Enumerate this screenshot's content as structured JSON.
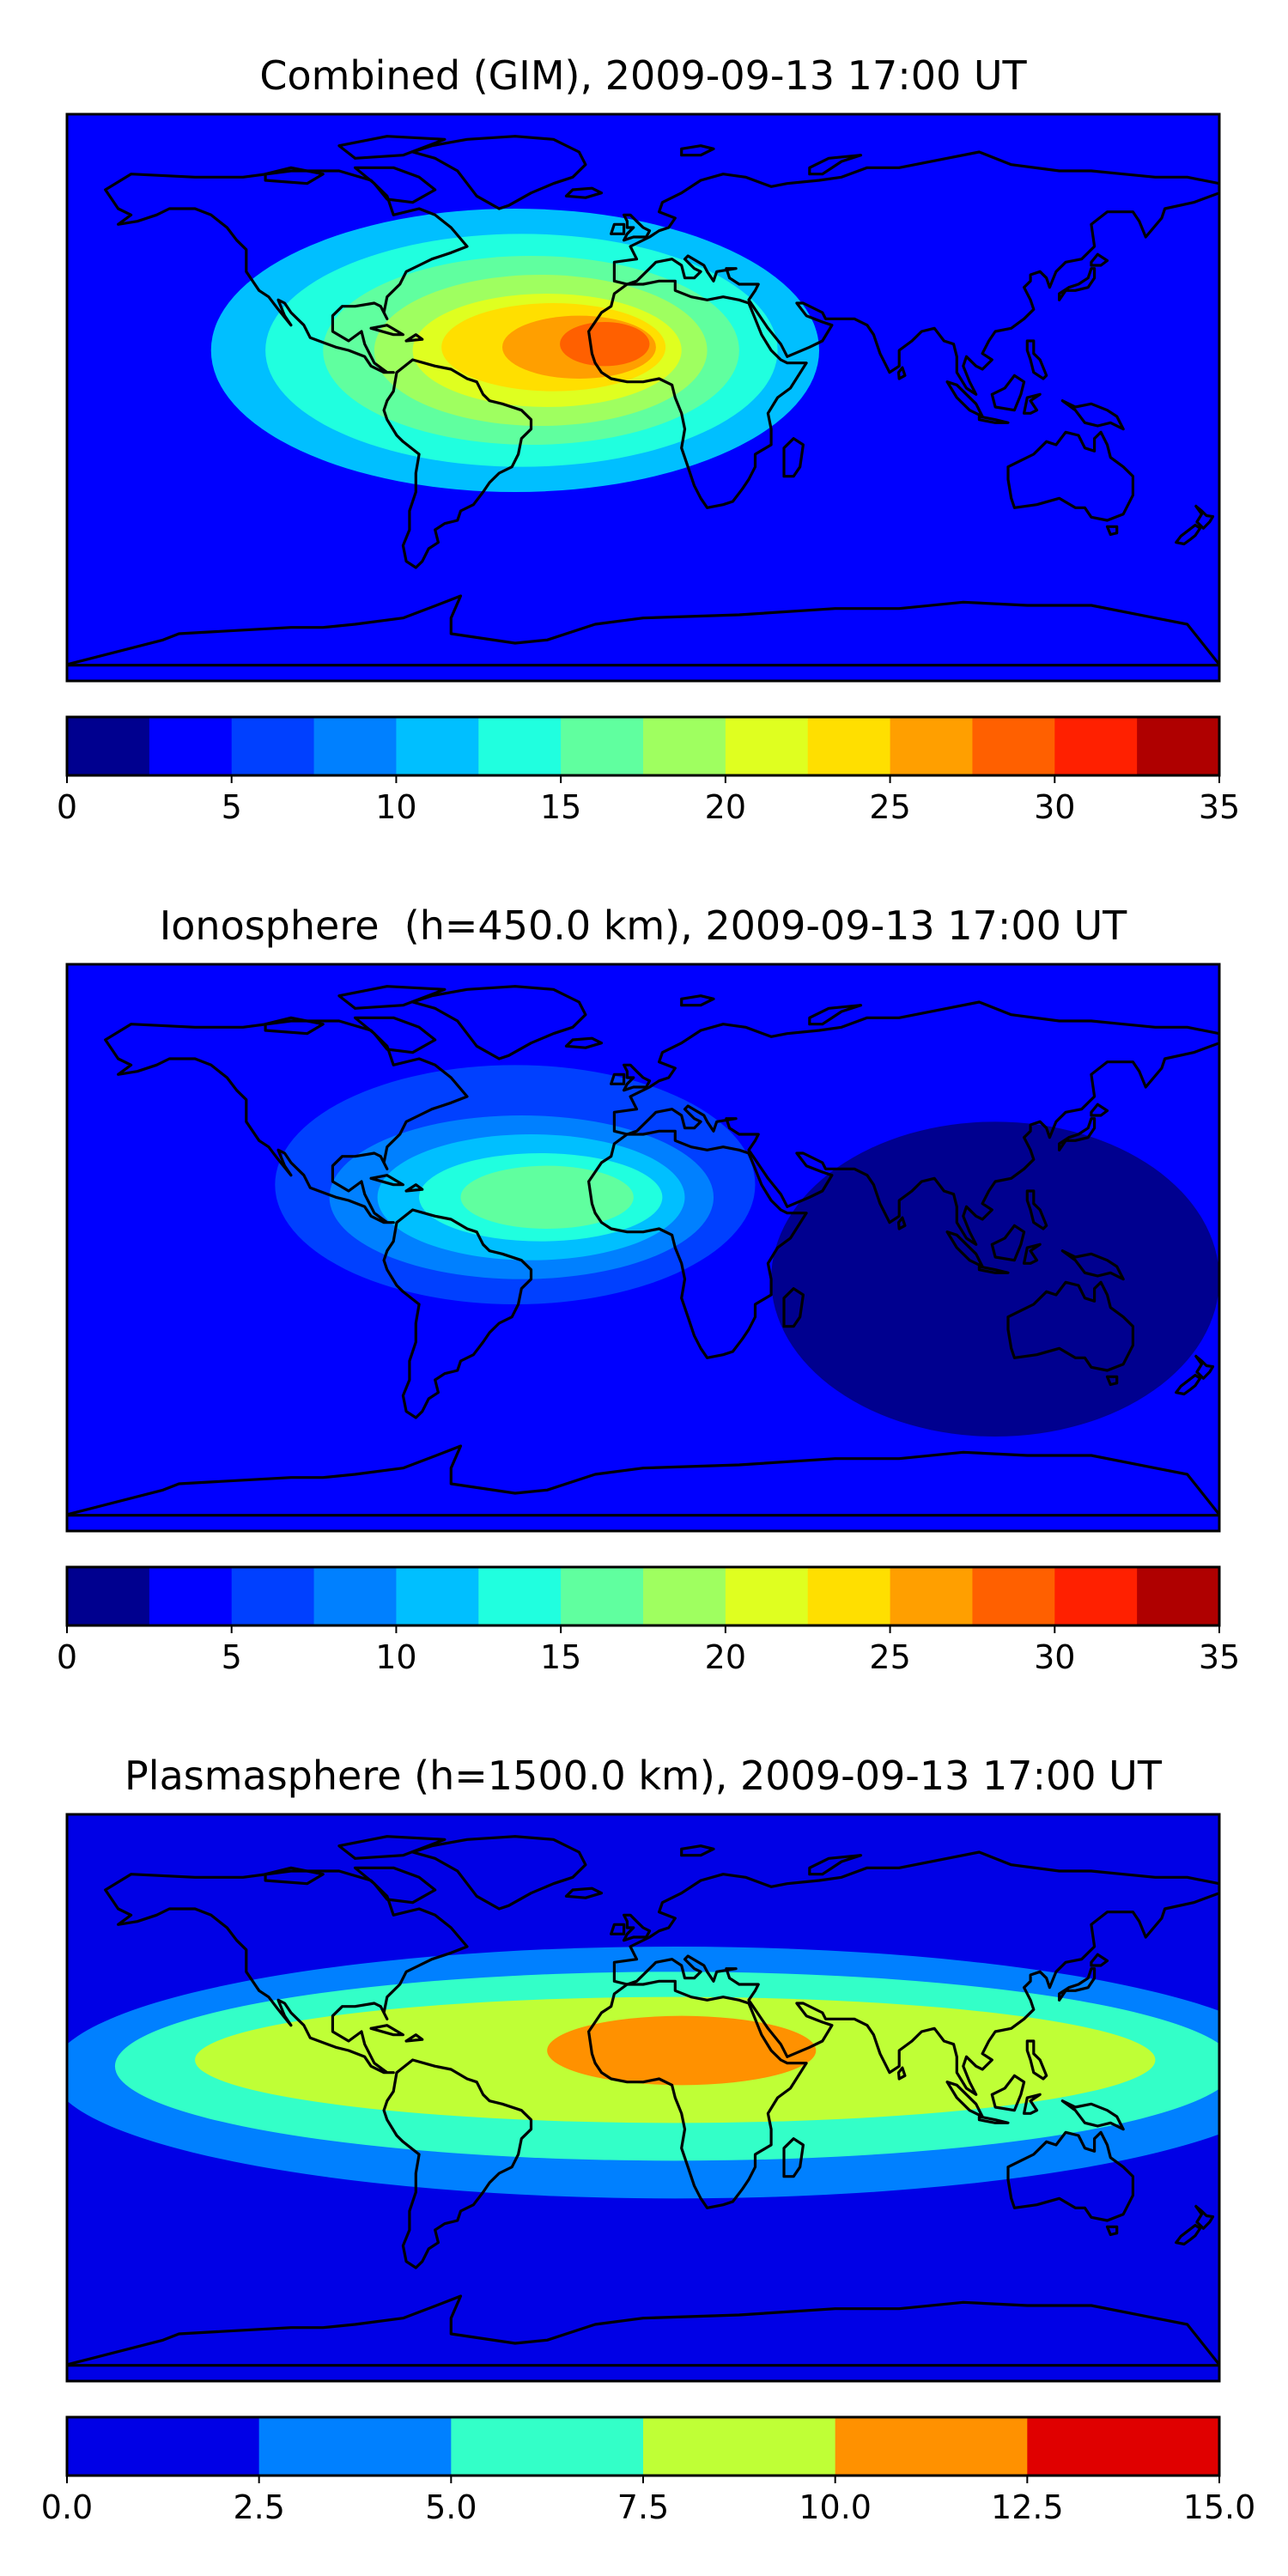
{
  "chart_data": [
    {
      "type": "heatmap",
      "title": "Combined (GIM), 2009-09-13 17:00 UT",
      "colorbar": {
        "levels": [
          0,
          2.5,
          5,
          7.5,
          10,
          12.5,
          15,
          17.5,
          20,
          22.5,
          25,
          27.5,
          30,
          32.5,
          35
        ],
        "tick_values": [
          0,
          5,
          10,
          15,
          20,
          25,
          30,
          35
        ],
        "tick_labels": [
          "0",
          "5",
          "10",
          "15",
          "20",
          "25",
          "30",
          "35"
        ],
        "colors": [
          "#00008f",
          "#0000ff",
          "#0040ff",
          "#0080ff",
          "#00bfff",
          "#20ffdf",
          "#60ff9f",
          "#9fff60",
          "#dfff20",
          "#ffdf00",
          "#ff9f00",
          "#ff6000",
          "#ff2000",
          "#af0000"
        ]
      },
      "background_level": 1,
      "field": [
        {
          "lon": -40,
          "lat": 15,
          "rx": 95,
          "ry": 45,
          "level": 4
        },
        {
          "lon": -38,
          "lat": 15,
          "rx": 80,
          "ry": 37,
          "level": 5
        },
        {
          "lon": -35,
          "lat": 15,
          "rx": 65,
          "ry": 30,
          "level": 6
        },
        {
          "lon": -32,
          "lat": 15,
          "rx": 52,
          "ry": 24,
          "level": 7
        },
        {
          "lon": -30,
          "lat": 15,
          "rx": 42,
          "ry": 18,
          "level": 8
        },
        {
          "lon": -28,
          "lat": 16,
          "rx": 35,
          "ry": 14,
          "level": 9
        },
        {
          "lon": -20,
          "lat": 16,
          "rx": 24,
          "ry": 10,
          "level": 10
        },
        {
          "lon": -12,
          "lat": 17,
          "rx": 14,
          "ry": 7,
          "level": 11
        }
      ]
    },
    {
      "type": "heatmap",
      "title": "Ionosphere  (h=450.0 km), 2009-09-13 17:00 UT",
      "colorbar": {
        "levels": [
          0,
          2.5,
          5,
          7.5,
          10,
          12.5,
          15,
          17.5,
          20,
          22.5,
          25,
          27.5,
          30,
          32.5,
          35
        ],
        "tick_values": [
          0,
          5,
          10,
          15,
          20,
          25,
          30,
          35
        ],
        "tick_labels": [
          "0",
          "5",
          "10",
          "15",
          "20",
          "25",
          "30",
          "35"
        ],
        "colors": [
          "#00008f",
          "#0000ff",
          "#0040ff",
          "#0080ff",
          "#00bfff",
          "#20ffdf",
          "#60ff9f",
          "#9fff60",
          "#dfff20",
          "#ffdf00",
          "#ff9f00",
          "#ff6000",
          "#ff2000",
          "#af0000"
        ]
      },
      "background_level": 1,
      "field": [
        {
          "lon": 110,
          "lat": -10,
          "rx": 70,
          "ry": 50,
          "level": 0
        },
        {
          "lon": -40,
          "lat": 20,
          "rx": 75,
          "ry": 38,
          "level": 2
        },
        {
          "lon": -38,
          "lat": 16,
          "rx": 60,
          "ry": 26,
          "level": 3
        },
        {
          "lon": -35,
          "lat": 16,
          "rx": 48,
          "ry": 20,
          "level": 4
        },
        {
          "lon": -32,
          "lat": 16,
          "rx": 38,
          "ry": 14,
          "level": 5
        },
        {
          "lon": -30,
          "lat": 16,
          "rx": 27,
          "ry": 10,
          "level": 6
        }
      ]
    },
    {
      "type": "heatmap",
      "title": "Plasmasphere (h=1500.0 km), 2009-09-13 17:00 UT",
      "colorbar": {
        "levels": [
          0,
          2.5,
          5,
          7.5,
          10,
          12.5,
          15
        ],
        "tick_values": [
          0,
          2.5,
          5,
          7.5,
          10,
          12.5,
          15
        ],
        "tick_labels": [
          "0.0",
          "2.5",
          "5.0",
          "7.5",
          "10.0",
          "12.5",
          "15.0"
        ],
        "colors": [
          "#0000e6",
          "#0080ff",
          "#33ffc8",
          "#bfff36",
          "#ff9100",
          "#e00000"
        ]
      },
      "background_level": 0,
      "field": [
        {
          "lon": 10,
          "lat": 8,
          "rx": 195,
          "ry": 40,
          "level": 1
        },
        {
          "lon": 10,
          "lat": 10,
          "rx": 175,
          "ry": 30,
          "level": 2
        },
        {
          "lon": 10,
          "lat": 12,
          "rx": 150,
          "ry": 20,
          "level": 3
        },
        {
          "lon": 12,
          "lat": 15,
          "rx": 42,
          "ry": 11,
          "level": 4
        }
      ]
    }
  ]
}
